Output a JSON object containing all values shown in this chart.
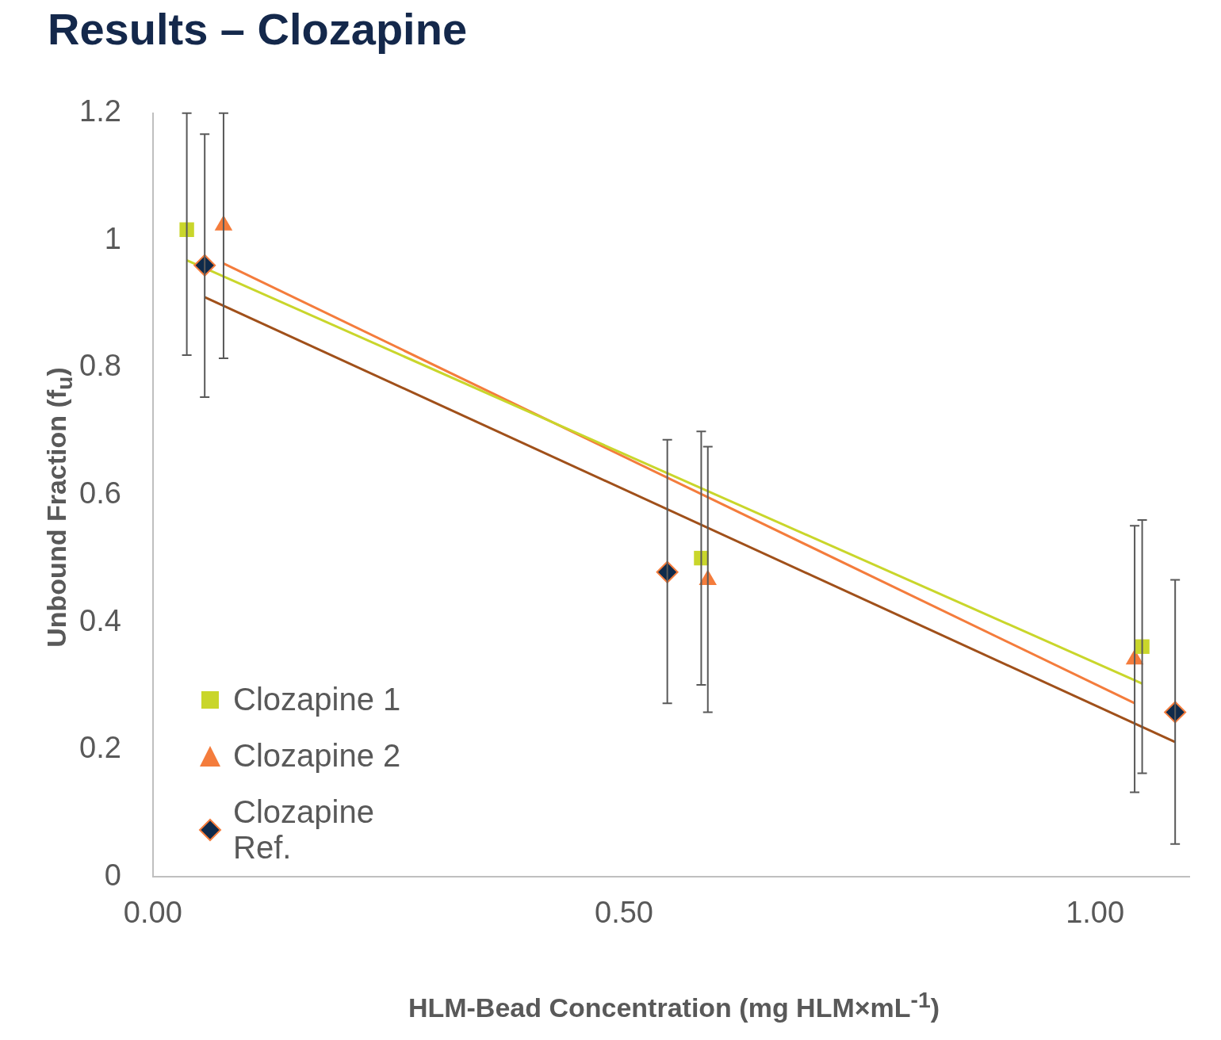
{
  "chart_data": {
    "type": "scatter",
    "title": "Results – Clozapine",
    "xlabel": "HLM-Bead Concentration (mg HLM×mL$^{-1}$)",
    "ylabel": "Unbound Fraction (f$_{u}$)",
    "xlim": [
      0,
      1.1
    ],
    "xticks": [
      {
        "value": 0,
        "label": "0.00"
      },
      {
        "value": 0.5,
        "label": "0.50"
      },
      {
        "value": 1,
        "label": "1.00"
      }
    ],
    "ylim": [
      0,
      1.2
    ],
    "yticks": [
      0,
      0.2,
      0.4,
      0.6,
      0.8,
      1,
      1.2
    ],
    "grid": false,
    "legend": "bottom left",
    "series": [
      {
        "name": "Clozapine 1",
        "type": "scatter",
        "marker": "square",
        "color": "#c9d62b",
        "x": [
          0.036,
          0.582,
          1.05
        ],
        "values": [
          1.017,
          0.501,
          0.362
        ],
        "errors": [
          [
            0.82,
            1.2
          ],
          [
            0.302,
            0.7
          ],
          [
            0.163,
            0.561
          ]
        ]
      },
      {
        "name": "Clozapine 2",
        "type": "scatter",
        "marker": "triangle",
        "color": "#f47c3c",
        "x": [
          0.075,
          0.589,
          1.042
        ],
        "values": [
          1.024,
          0.467,
          0.342
        ],
        "errors": [
          [
            0.815,
            1.2
          ],
          [
            0.259,
            0.676
          ],
          [
            0.133,
            0.552
          ]
        ]
      },
      {
        "name": "Clozapine Ref.",
        "type": "scatter",
        "marker": "diamond",
        "color": "#0f2a4a",
        "x": [
          0.055,
          0.546,
          1.085
        ],
        "values": [
          0.961,
          0.479,
          0.259
        ],
        "errors": [
          [
            0.754,
            1.167
          ],
          [
            0.273,
            0.687
          ],
          [
            0.052,
            0.467
          ]
        ]
      },
      {
        "type": "line",
        "color": "#c9d62b",
        "x": [
          0.036,
          1.05
        ],
        "values": [
          0.969,
          0.304
        ]
      },
      {
        "type": "line",
        "color": "#f47c3c",
        "x": [
          0.075,
          1.042
        ],
        "values": [
          0.964,
          0.273
        ]
      },
      {
        "type": "line",
        "color": "#a0501a",
        "x": [
          0.055,
          1.085
        ],
        "values": [
          0.911,
          0.212
        ]
      }
    ]
  }
}
